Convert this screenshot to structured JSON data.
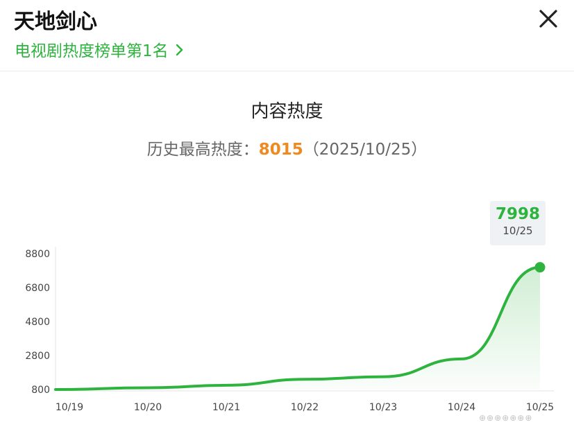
{
  "header": {
    "title": "天地剑心",
    "subtitle": "电视剧热度榜单第1名",
    "subtitle_color": "#2db33e"
  },
  "content": {
    "section_title": "内容热度",
    "peak_label": "历史最高热度：",
    "peak_value": "8015",
    "peak_date": "（2025/10/25）",
    "peak_color": "#ef8a20"
  },
  "tooltip": {
    "value": "7998",
    "date": "10/25"
  },
  "chart_data": {
    "type": "area",
    "x": [
      "10/19",
      "10/20",
      "10/21",
      "10/22",
      "10/23",
      "10/24",
      "10/25"
    ],
    "y_ticks": [
      "8800",
      "6800",
      "4800",
      "2800",
      "800"
    ],
    "ylim": [
      800,
      8800
    ],
    "series": [
      {
        "points": [
          [
            "10/19",
            800
          ],
          [
            "10/20",
            900
          ],
          [
            "10/21",
            1050
          ],
          [
            "10/22",
            1400
          ],
          [
            "10/23",
            1550
          ],
          [
            "10/24",
            2600
          ],
          [
            "10/25",
            7998
          ]
        ],
        "color": "#2db33e"
      }
    ],
    "grid": false,
    "last_point_marker": true
  },
  "watermark": "⊕⊕⊕⊕⊕⊕⊕"
}
